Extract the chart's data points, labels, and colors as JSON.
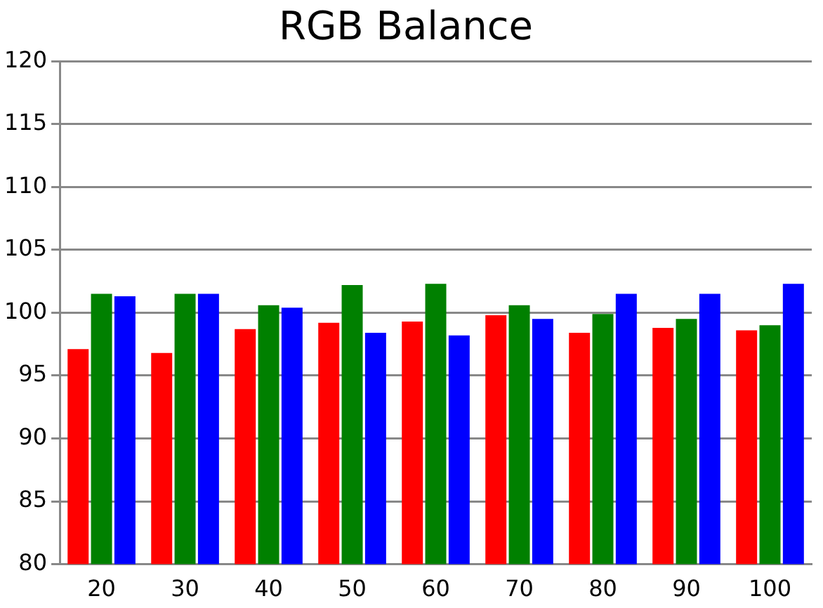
{
  "chart_data": {
    "type": "bar",
    "title": "RGB Balance",
    "categories": [
      "20",
      "30",
      "40",
      "50",
      "60",
      "70",
      "80",
      "90",
      "100"
    ],
    "series": [
      {
        "color": "#ff0000",
        "values": [
          97.1,
          96.8,
          98.7,
          99.2,
          99.3,
          99.8,
          98.4,
          98.8,
          98.6
        ]
      },
      {
        "color": "#008000",
        "values": [
          101.5,
          101.5,
          100.6,
          102.2,
          102.3,
          100.6,
          99.9,
          99.5,
          99.0
        ]
      },
      {
        "color": "#0000ff",
        "values": [
          101.3,
          101.5,
          100.4,
          98.4,
          98.2,
          99.5,
          101.5,
          101.5,
          102.3
        ]
      }
    ],
    "ylim": [
      80,
      120
    ],
    "yticks": [
      80,
      85,
      90,
      95,
      100,
      105,
      110,
      115,
      120
    ],
    "grid": "y",
    "legend": false
  }
}
